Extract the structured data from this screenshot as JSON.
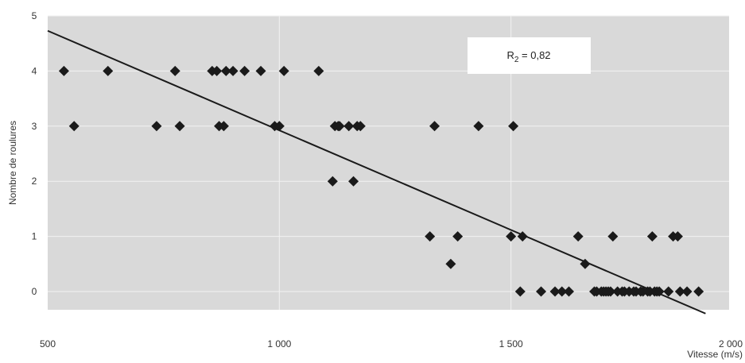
{
  "chart_data": {
    "type": "scatter",
    "title": "",
    "xlabel": "Vitesse (m/s)",
    "ylabel": "Nombre de roulures",
    "xlim": [
      500,
      2000
    ],
    "ylim": [
      -0.5,
      5
    ],
    "x_ticks": [
      500,
      1000,
      1500,
      2000
    ],
    "x_tick_labels": [
      "500",
      "1 000",
      "1 500",
      "2 000"
    ],
    "y_ticks": [
      0,
      1,
      2,
      3,
      4,
      5
    ],
    "y_tick_labels": [
      "0",
      "1",
      "2",
      "3",
      "4",
      "5"
    ],
    "grid": true,
    "legend": "none",
    "annotation": {
      "prefix": "R",
      "subscript": "2",
      "suffix": " = 0,82"
    },
    "trendline": {
      "x": [
        500,
        1920
      ],
      "y": [
        4.73,
        -0.4
      ]
    },
    "colors": {
      "plot_background": "#d9d9d9",
      "gridline": "#f2f2f2",
      "marker": "#1a1a1a",
      "trendline": "#1a1a1a"
    },
    "series": [
      {
        "x": [
          535,
          557,
          630,
          735,
          775,
          785,
          855,
          865,
          870,
          880,
          885,
          900,
          925,
          960,
          990,
          1000,
          1010,
          1085,
          1115,
          1120,
          1127,
          1130,
          1150,
          1160,
          1168,
          1175,
          1325,
          1335,
          1370,
          1385,
          1430,
          1500,
          1505,
          1520,
          1525,
          1565,
          1595,
          1610,
          1625,
          1645,
          1660,
          1680,
          1685,
          1695,
          1700,
          1705,
          1710,
          1715,
          1720,
          1730,
          1740,
          1745,
          1755,
          1765,
          1770,
          1780,
          1785,
          1795,
          1800,
          1805,
          1810,
          1815,
          1820,
          1840,
          1850,
          1860,
          1865,
          1880,
          1905
        ],
        "y": [
          4,
          3,
          4,
          3,
          4,
          3,
          4,
          4,
          3,
          3,
          4,
          4,
          4,
          4,
          3,
          3,
          4,
          4,
          2,
          3,
          3,
          3,
          3,
          2,
          3,
          3,
          1,
          3,
          0.5,
          1,
          3,
          1,
          3,
          0,
          1,
          0,
          0,
          0,
          0,
          1,
          0.5,
          0,
          0,
          0,
          0,
          0,
          0,
          0,
          1,
          0,
          0,
          0,
          0,
          0,
          0,
          0,
          0,
          0,
          0,
          1,
          0,
          0,
          0,
          0,
          1,
          1,
          0,
          0,
          0
        ]
      }
    ]
  }
}
